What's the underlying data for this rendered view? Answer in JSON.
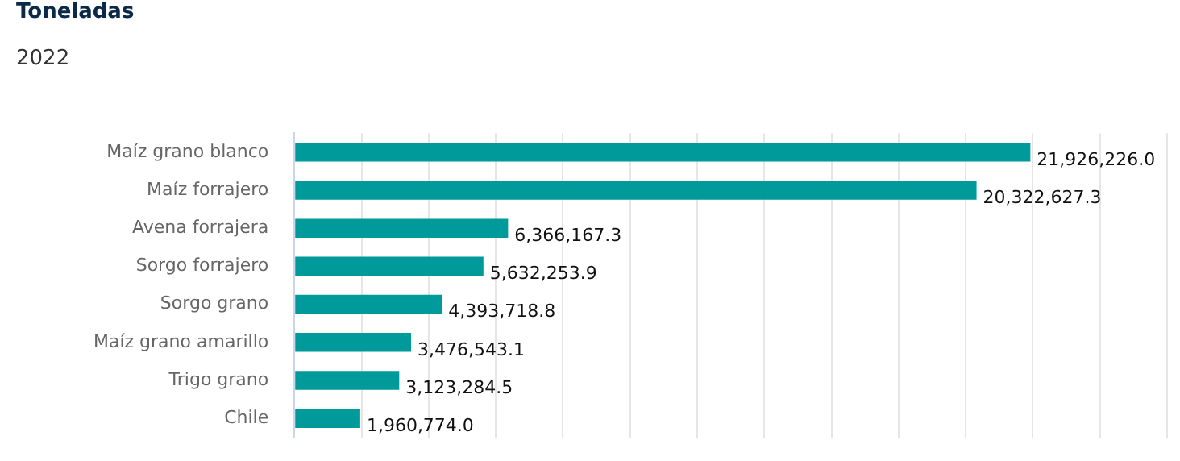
{
  "chart_data": {
    "type": "bar",
    "orientation": "horizontal",
    "title": "Toneladas",
    "subtitle": "2022",
    "categories": [
      "Maíz grano blanco",
      "Maíz forrajero",
      "Avena forrajera",
      "Sorgo forrajero",
      "Sorgo grano",
      "Maíz grano amarillo",
      "Trigo grano",
      "Chile"
    ],
    "values": [
      21926226.0,
      20322627.3,
      6366167.3,
      5632253.9,
      4393718.8,
      3476543.1,
      3123284.5,
      1960774.0
    ],
    "color": "#009a9a",
    "value_labels": [
      "21,926,226.0",
      "20,322,627.3",
      "6,366,167.3",
      "5,632,253.9",
      "4,393,718.8",
      "3,476,543.1",
      "3,123,284.5",
      "1,960,774.0"
    ],
    "tick_labels": "y",
    "grid": "x"
  }
}
